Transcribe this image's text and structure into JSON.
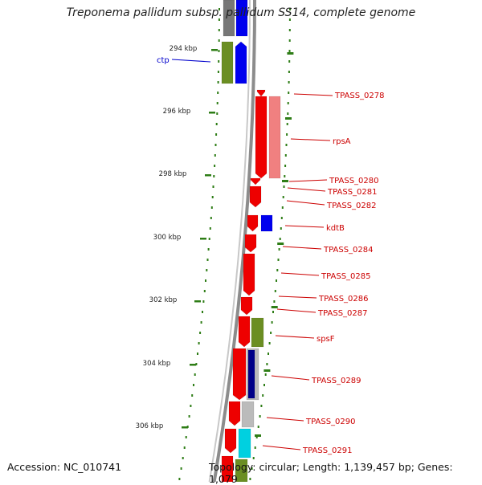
{
  "title": "Treponema pallidum subsp. pallidum SS14, complete genome",
  "accession": "Accession: NC_010741",
  "summary": "Topology: circular; Length: 1,139,457 bp; Genes: 1,079",
  "colors": {
    "backbone": "#8c8c8c",
    "tick": "#2e7d16",
    "cds_forward": "#ee0000",
    "label_forward": "#cc0000",
    "label_reverse": "#0000cc"
  },
  "kbp_ticks": [
    "294 kbp",
    "296 kbp",
    "298 kbp",
    "300 kbp",
    "302 kbp",
    "304 kbp",
    "306 kbp"
  ],
  "genes": [
    {
      "label": "ctp",
      "strand": "reverse"
    },
    {
      "label": "TPASS_0278",
      "strand": "forward"
    },
    {
      "label": "rpsA",
      "strand": "forward"
    },
    {
      "label": "TPASS_0280",
      "strand": "forward"
    },
    {
      "label": "TPASS_0281",
      "strand": "forward"
    },
    {
      "label": "TPASS_0282",
      "strand": "forward"
    },
    {
      "label": "kdtB",
      "strand": "forward"
    },
    {
      "label": "TPASS_0284",
      "strand": "forward"
    },
    {
      "label": "TPASS_0285",
      "strand": "forward"
    },
    {
      "label": "TPASS_0286",
      "strand": "forward"
    },
    {
      "label": "TPASS_0287",
      "strand": "forward"
    },
    {
      "label": "spsF",
      "strand": "forward"
    },
    {
      "label": "TPASS_0289",
      "strand": "forward"
    },
    {
      "label": "TPASS_0290",
      "strand": "forward"
    },
    {
      "label": "TPASS_0291",
      "strand": "forward"
    }
  ]
}
